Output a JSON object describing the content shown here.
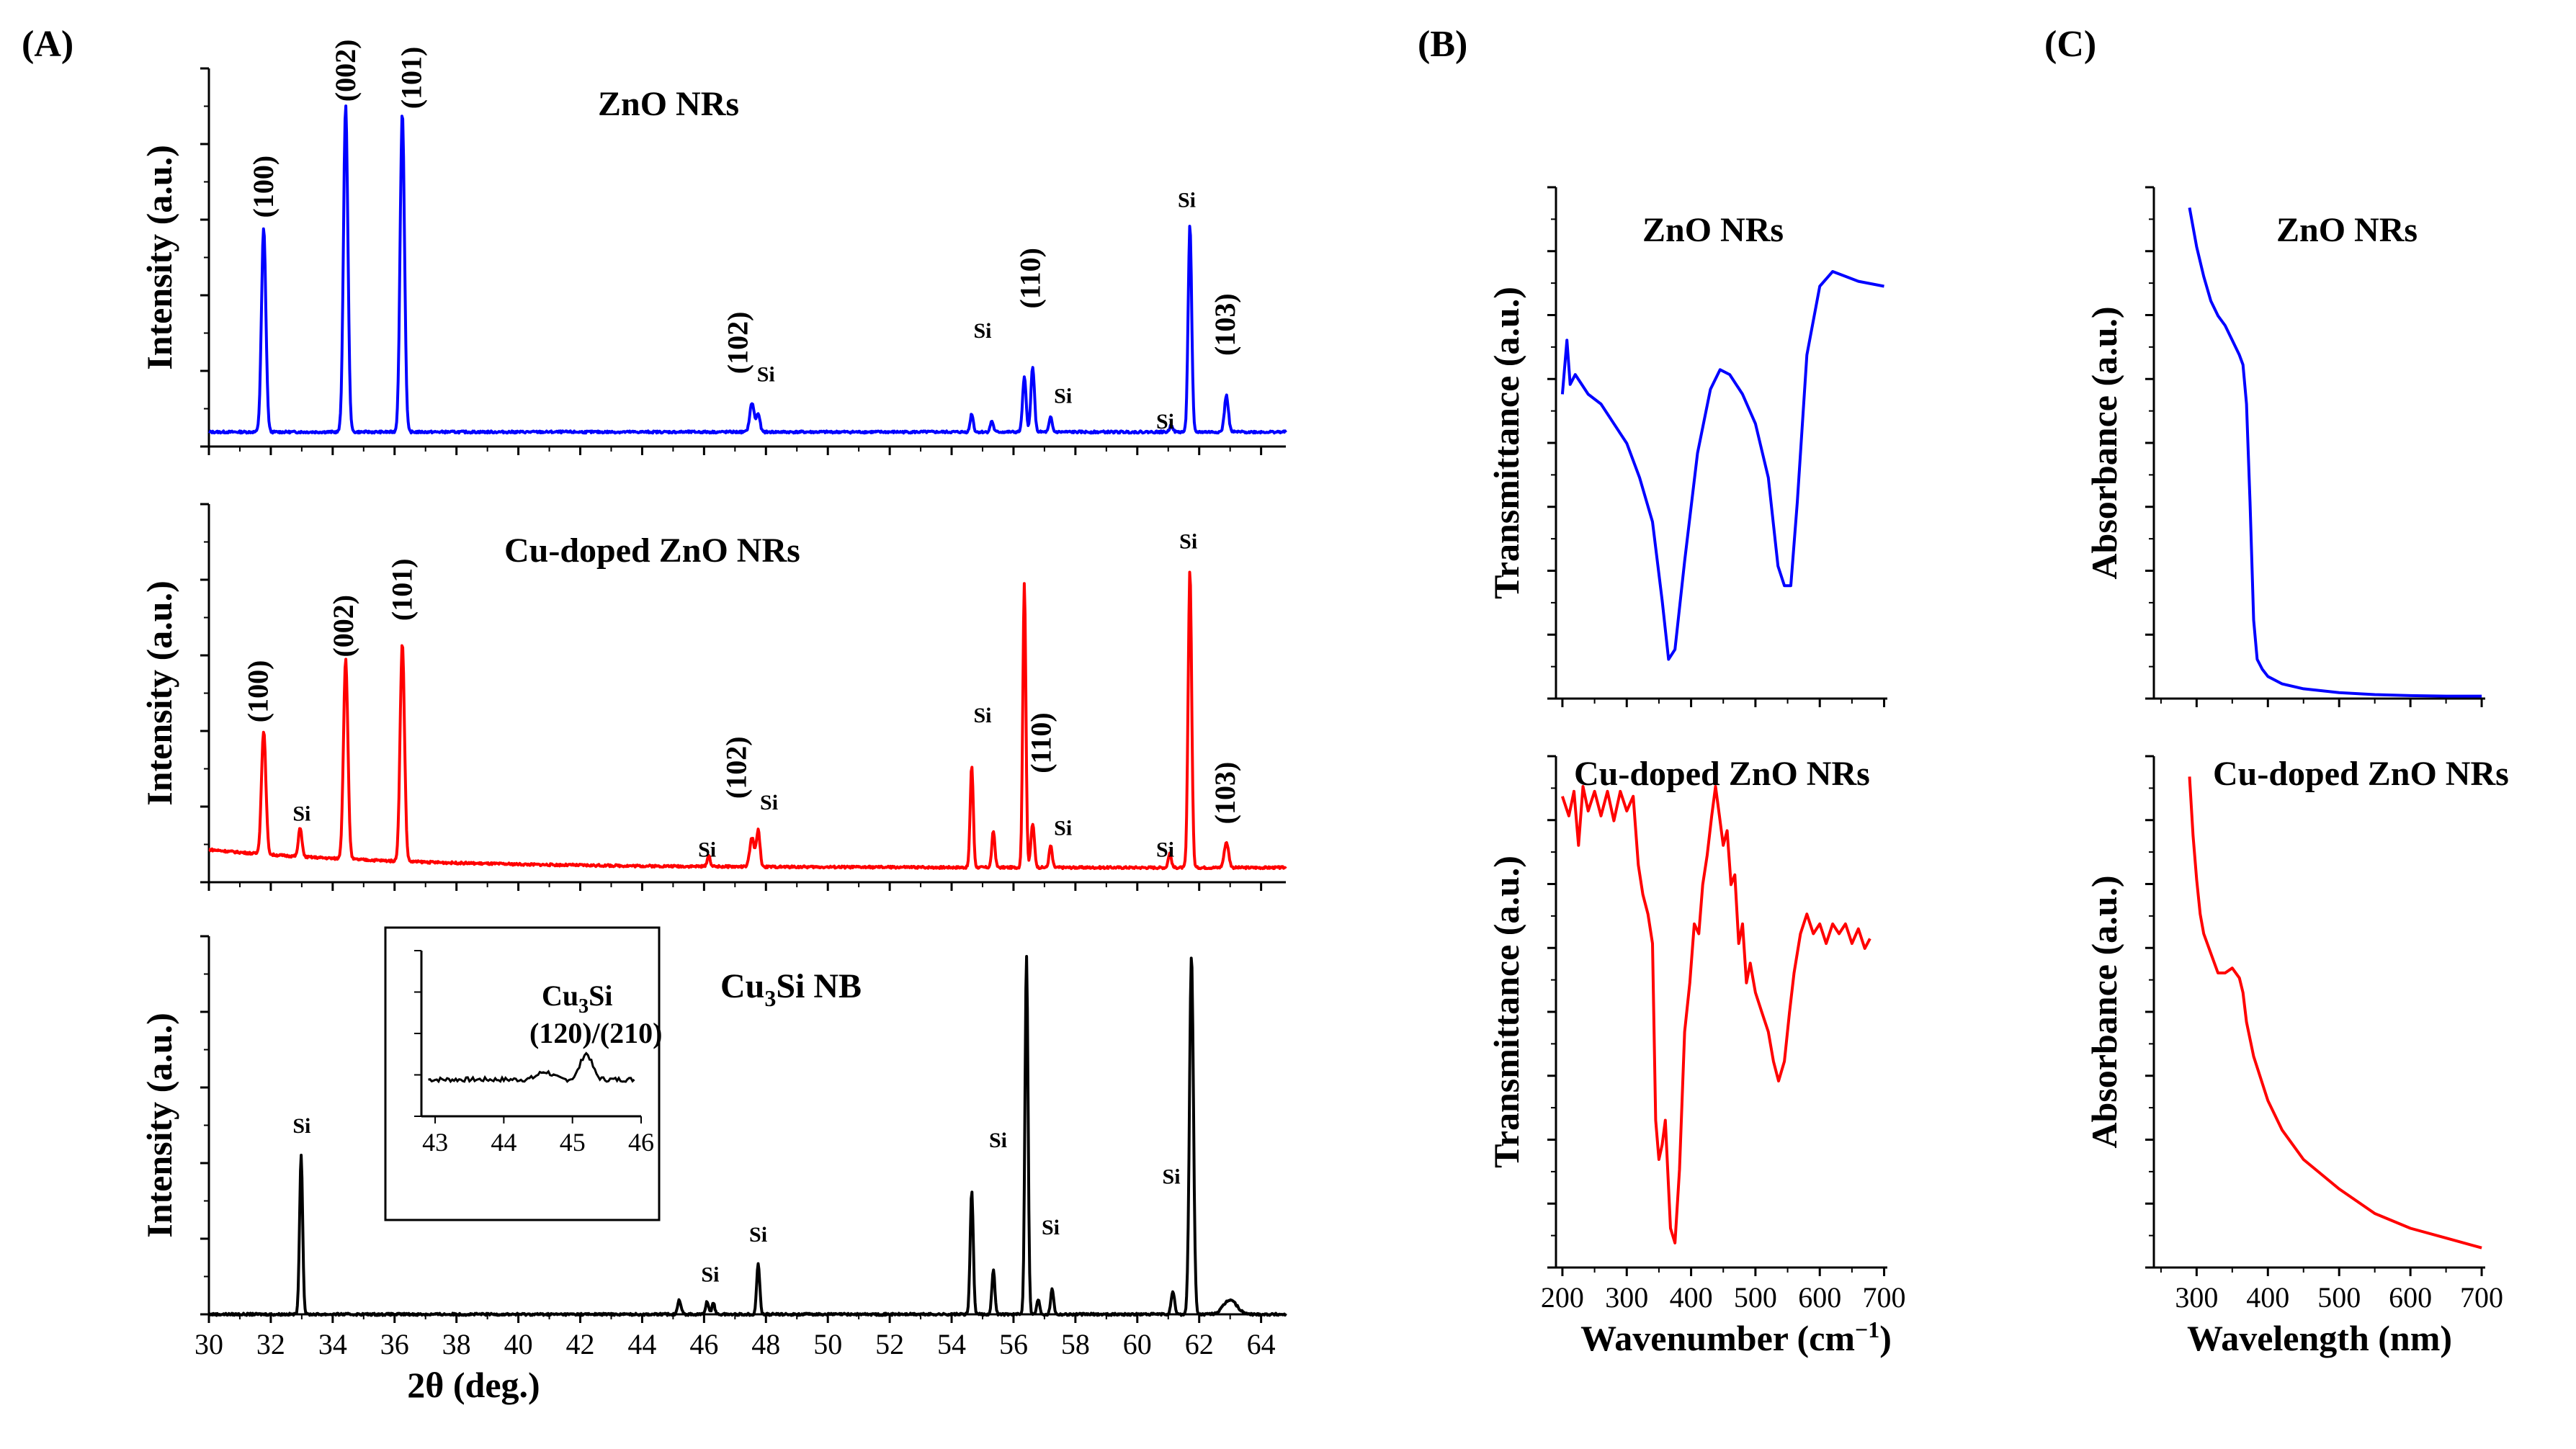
{
  "panels": {
    "A": "(A)",
    "B": "(B)",
    "C": "(C)"
  },
  "colors": {
    "zno": "#0000ff",
    "cu_doped": "#ff0000",
    "cu3si": "#000000"
  },
  "chart_data": [
    {
      "id": "A-top",
      "type": "line",
      "title": "ZnO NRs",
      "ylabel": "Intensity (a.u.)",
      "xlim": [
        30,
        64.8
      ],
      "baseline": 0.04,
      "peaks": [
        {
          "x": 31.77,
          "h": 0.56,
          "w": 0.1
        },
        {
          "x": 34.42,
          "h": 0.9,
          "w": 0.1
        },
        {
          "x": 36.25,
          "h": 0.88,
          "w": 0.1
        },
        {
          "x": 47.55,
          "h": 0.08,
          "w": 0.1
        },
        {
          "x": 47.75,
          "h": 0.05,
          "w": 0.08
        },
        {
          "x": 54.65,
          "h": 0.05,
          "w": 0.07
        },
        {
          "x": 55.3,
          "h": 0.03,
          "w": 0.07
        },
        {
          "x": 56.35,
          "h": 0.15,
          "w": 0.08
        },
        {
          "x": 56.62,
          "h": 0.18,
          "w": 0.08
        },
        {
          "x": 57.2,
          "h": 0.04,
          "w": 0.07
        },
        {
          "x": 61.1,
          "h": 0.02,
          "w": 0.07
        },
        {
          "x": 61.7,
          "h": 0.57,
          "w": 0.08
        },
        {
          "x": 62.88,
          "h": 0.1,
          "w": 0.09
        }
      ],
      "labels": [
        {
          "text": "(100)",
          "x": 31.77,
          "y": 0.63,
          "rot": true
        },
        {
          "text": "(002)",
          "x": 34.42,
          "y": 0.95,
          "rot": true
        },
        {
          "text": "(101)",
          "x": 36.55,
          "y": 0.93,
          "rot": true
        },
        {
          "text": "(102)",
          "x": 47.1,
          "y": 0.2,
          "rot": true
        },
        {
          "text": "Si",
          "x": 48.0,
          "y": 0.18,
          "rot": false
        },
        {
          "text": "Si",
          "x": 55.0,
          "y": 0.3,
          "rot": false
        },
        {
          "text": "(110)",
          "x": 56.55,
          "y": 0.38,
          "rot": true
        },
        {
          "text": "Si",
          "x": 57.6,
          "y": 0.12,
          "rot": false
        },
        {
          "text": "Si",
          "x": 60.9,
          "y": 0.05,
          "rot": false
        },
        {
          "text": "Si",
          "x": 61.6,
          "y": 0.66,
          "rot": false
        },
        {
          "text": "(103)",
          "x": 62.85,
          "y": 0.25,
          "rot": true
        }
      ]
    },
    {
      "id": "A-mid",
      "type": "line",
      "title": "Cu-doped ZnO NRs",
      "ylabel": "Intensity (a.u.)",
      "xlim": [
        30,
        64.8
      ],
      "baseline": 0.04,
      "peaks": [
        {
          "x": 31.77,
          "h": 0.34,
          "w": 0.1
        },
        {
          "x": 32.95,
          "h": 0.08,
          "w": 0.08
        },
        {
          "x": 34.42,
          "h": 0.55,
          "w": 0.1
        },
        {
          "x": 36.25,
          "h": 0.6,
          "w": 0.1
        },
        {
          "x": 46.15,
          "h": 0.03,
          "w": 0.07
        },
        {
          "x": 47.55,
          "h": 0.08,
          "w": 0.1
        },
        {
          "x": 47.75,
          "h": 0.1,
          "w": 0.08
        },
        {
          "x": 54.65,
          "h": 0.28,
          "w": 0.07
        },
        {
          "x": 55.35,
          "h": 0.1,
          "w": 0.07
        },
        {
          "x": 56.35,
          "h": 0.78,
          "w": 0.07
        },
        {
          "x": 56.62,
          "h": 0.12,
          "w": 0.08
        },
        {
          "x": 57.2,
          "h": 0.06,
          "w": 0.07
        },
        {
          "x": 61.05,
          "h": 0.04,
          "w": 0.07
        },
        {
          "x": 61.7,
          "h": 0.82,
          "w": 0.08
        },
        {
          "x": 62.88,
          "h": 0.07,
          "w": 0.1
        }
      ],
      "labels": [
        {
          "text": "(100)",
          "x": 31.6,
          "y": 0.44,
          "rot": true
        },
        {
          "text": "Si",
          "x": 33.0,
          "y": 0.17,
          "rot": false
        },
        {
          "text": "(002)",
          "x": 34.35,
          "y": 0.62,
          "rot": true
        },
        {
          "text": "(101)",
          "x": 36.25,
          "y": 0.72,
          "rot": true
        },
        {
          "text": "Si",
          "x": 46.1,
          "y": 0.07,
          "rot": false
        },
        {
          "text": "(102)",
          "x": 47.05,
          "y": 0.23,
          "rot": true
        },
        {
          "text": "Si",
          "x": 48.1,
          "y": 0.2,
          "rot": false
        },
        {
          "text": "Si",
          "x": 55.0,
          "y": 0.44,
          "rot": false
        },
        {
          "text": "(110)",
          "x": 56.9,
          "y": 0.3,
          "rot": true
        },
        {
          "text": "Si",
          "x": 57.6,
          "y": 0.13,
          "rot": false
        },
        {
          "text": "Si",
          "x": 60.9,
          "y": 0.07,
          "rot": false
        },
        {
          "text": "Si",
          "x": 61.65,
          "y": 0.92,
          "rot": false
        },
        {
          "text": "(103)",
          "x": 62.85,
          "y": 0.16,
          "rot": true
        }
      ]
    },
    {
      "id": "A-bot",
      "type": "line",
      "title": "Cu3Si NB",
      "title_main": "Cu",
      "title_sub": "3",
      "title_rest": "Si NB",
      "ylabel": "Intensity (a.u.)",
      "xlabel": "2θ (deg.)",
      "xlim": [
        30,
        64.8
      ],
      "xticks": [
        30,
        32,
        34,
        36,
        38,
        40,
        42,
        44,
        46,
        48,
        50,
        52,
        54,
        56,
        58,
        60,
        62,
        64
      ],
      "baseline": 0.0,
      "peaks": [
        {
          "x": 32.98,
          "h": 0.44,
          "w": 0.07
        },
        {
          "x": 45.2,
          "h": 0.04,
          "w": 0.08
        },
        {
          "x": 46.1,
          "h": 0.035,
          "w": 0.07
        },
        {
          "x": 46.3,
          "h": 0.03,
          "w": 0.07
        },
        {
          "x": 47.75,
          "h": 0.14,
          "w": 0.07
        },
        {
          "x": 54.65,
          "h": 0.34,
          "w": 0.07
        },
        {
          "x": 55.35,
          "h": 0.12,
          "w": 0.07
        },
        {
          "x": 56.42,
          "h": 0.99,
          "w": 0.07
        },
        {
          "x": 56.8,
          "h": 0.04,
          "w": 0.07
        },
        {
          "x": 57.25,
          "h": 0.07,
          "w": 0.07
        },
        {
          "x": 61.15,
          "h": 0.06,
          "w": 0.08
        },
        {
          "x": 61.75,
          "h": 0.99,
          "w": 0.09
        },
        {
          "x": 63.0,
          "h": 0.04,
          "w": 0.3
        }
      ],
      "labels": [
        {
          "text": "Si",
          "x": 33.0,
          "y": 0.5,
          "rot": false
        },
        {
          "text": "Si",
          "x": 46.2,
          "y": 0.09,
          "rot": false
        },
        {
          "text": "Si",
          "x": 47.75,
          "y": 0.2,
          "rot": false
        },
        {
          "text": "Si",
          "x": 55.5,
          "y": 0.46,
          "rot": false
        },
        {
          "text": "Si",
          "x": 57.2,
          "y": 0.22,
          "rot": false
        },
        {
          "text": "Si",
          "x": 61.1,
          "y": 0.36,
          "rot": false
        }
      ],
      "inset": {
        "title_line1_main": "Cu",
        "title_line1_sub": "3",
        "title_line1_rest": "Si",
        "title_line2": "(120)/(210)",
        "xlim": [
          42.8,
          46.0
        ],
        "xticks": [
          43,
          44,
          45,
          46
        ]
      }
    },
    {
      "id": "B-top",
      "type": "line",
      "title": "ZnO NRs",
      "ylabel": "Transmittance (a.u.)",
      "xlim": [
        190,
        705
      ],
      "points": [
        [
          200,
          0.62
        ],
        [
          207,
          0.73
        ],
        [
          212,
          0.64
        ],
        [
          220,
          0.66
        ],
        [
          240,
          0.62
        ],
        [
          260,
          0.6
        ],
        [
          280,
          0.56
        ],
        [
          300,
          0.52
        ],
        [
          320,
          0.45
        ],
        [
          340,
          0.36
        ],
        [
          355,
          0.2
        ],
        [
          365,
          0.08
        ],
        [
          375,
          0.1
        ],
        [
          390,
          0.28
        ],
        [
          410,
          0.5
        ],
        [
          430,
          0.63
        ],
        [
          445,
          0.67
        ],
        [
          460,
          0.66
        ],
        [
          480,
          0.62
        ],
        [
          500,
          0.56
        ],
        [
          520,
          0.45
        ],
        [
          535,
          0.27
        ],
        [
          545,
          0.23
        ],
        [
          555,
          0.23
        ],
        [
          565,
          0.4
        ],
        [
          580,
          0.7
        ],
        [
          600,
          0.84
        ],
        [
          620,
          0.87
        ],
        [
          640,
          0.86
        ],
        [
          660,
          0.85
        ],
        [
          700,
          0.84
        ]
      ]
    },
    {
      "id": "B-bot",
      "type": "line",
      "title": "Cu-doped ZnO NRs",
      "ylabel": "Transmittance (a.u.)",
      "xlabel_main": "Wavenumber (cm",
      "xlabel_sup": "−1",
      "xlabel_end": ")",
      "xlim": [
        190,
        705
      ],
      "xticks": [
        200,
        300,
        400,
        500,
        600,
        700
      ],
      "points": [
        [
          200,
          0.96
        ],
        [
          210,
          0.92
        ],
        [
          218,
          0.97
        ],
        [
          225,
          0.86
        ],
        [
          232,
          0.98
        ],
        [
          240,
          0.93
        ],
        [
          250,
          0.97
        ],
        [
          260,
          0.92
        ],
        [
          270,
          0.97
        ],
        [
          280,
          0.91
        ],
        [
          290,
          0.97
        ],
        [
          300,
          0.93
        ],
        [
          310,
          0.96
        ],
        [
          318,
          0.82
        ],
        [
          325,
          0.76
        ],
        [
          333,
          0.72
        ],
        [
          340,
          0.66
        ],
        [
          345,
          0.3
        ],
        [
          350,
          0.22
        ],
        [
          355,
          0.25
        ],
        [
          360,
          0.3
        ],
        [
          368,
          0.08
        ],
        [
          375,
          0.05
        ],
        [
          382,
          0.2
        ],
        [
          390,
          0.48
        ],
        [
          398,
          0.58
        ],
        [
          405,
          0.7
        ],
        [
          412,
          0.68
        ],
        [
          418,
          0.78
        ],
        [
          425,
          0.84
        ],
        [
          432,
          0.92
        ],
        [
          438,
          0.98
        ],
        [
          444,
          0.92
        ],
        [
          450,
          0.86
        ],
        [
          456,
          0.89
        ],
        [
          462,
          0.78
        ],
        [
          468,
          0.8
        ],
        [
          474,
          0.66
        ],
        [
          480,
          0.7
        ],
        [
          486,
          0.58
        ],
        [
          492,
          0.62
        ],
        [
          500,
          0.56
        ],
        [
          510,
          0.52
        ],
        [
          520,
          0.48
        ],
        [
          528,
          0.42
        ],
        [
          536,
          0.38
        ],
        [
          545,
          0.42
        ],
        [
          553,
          0.52
        ],
        [
          560,
          0.6
        ],
        [
          570,
          0.68
        ],
        [
          580,
          0.72
        ],
        [
          590,
          0.68
        ],
        [
          600,
          0.7
        ],
        [
          610,
          0.66
        ],
        [
          620,
          0.7
        ],
        [
          630,
          0.68
        ],
        [
          640,
          0.7
        ],
        [
          650,
          0.66
        ],
        [
          660,
          0.69
        ],
        [
          670,
          0.65
        ],
        [
          678,
          0.67
        ]
      ]
    },
    {
      "id": "C-top",
      "type": "line",
      "title": "ZnO NRs",
      "ylabel": "Absorbance (a.u.)",
      "xlim": [
        240,
        705
      ],
      "points": [
        [
          290,
          1.0
        ],
        [
          300,
          0.92
        ],
        [
          310,
          0.86
        ],
        [
          320,
          0.81
        ],
        [
          330,
          0.78
        ],
        [
          340,
          0.76
        ],
        [
          350,
          0.73
        ],
        [
          360,
          0.7
        ],
        [
          365,
          0.68
        ],
        [
          370,
          0.6
        ],
        [
          375,
          0.4
        ],
        [
          380,
          0.16
        ],
        [
          385,
          0.08
        ],
        [
          392,
          0.06
        ],
        [
          400,
          0.045
        ],
        [
          420,
          0.03
        ],
        [
          450,
          0.02
        ],
        [
          500,
          0.012
        ],
        [
          550,
          0.008
        ],
        [
          600,
          0.006
        ],
        [
          650,
          0.005
        ],
        [
          700,
          0.005
        ]
      ]
    },
    {
      "id": "C-bot",
      "type": "line",
      "title": "Cu-doped ZnO NRs",
      "ylabel": "Absorbance (a.u.)",
      "xlabel": "Wavelength (nm)",
      "xlim": [
        240,
        705
      ],
      "xticks": [
        300,
        400,
        500,
        600,
        700
      ],
      "points": [
        [
          290,
          1.0
        ],
        [
          295,
          0.88
        ],
        [
          300,
          0.79
        ],
        [
          305,
          0.72
        ],
        [
          310,
          0.68
        ],
        [
          320,
          0.64
        ],
        [
          330,
          0.6
        ],
        [
          340,
          0.6
        ],
        [
          350,
          0.61
        ],
        [
          360,
          0.59
        ],
        [
          365,
          0.56
        ],
        [
          370,
          0.5
        ],
        [
          380,
          0.43
        ],
        [
          400,
          0.34
        ],
        [
          420,
          0.28
        ],
        [
          450,
          0.22
        ],
        [
          500,
          0.16
        ],
        [
          550,
          0.11
        ],
        [
          600,
          0.08
        ],
        [
          650,
          0.06
        ],
        [
          700,
          0.04
        ]
      ]
    }
  ]
}
